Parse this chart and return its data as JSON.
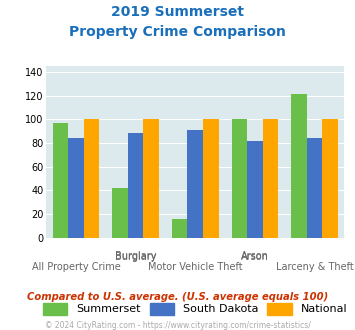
{
  "title_line1": "2019 Summerset",
  "title_line2": "Property Crime Comparison",
  "categories": [
    "All Property Crime",
    "Burglary",
    "Motor Vehicle Theft",
    "Arson",
    "Larceny & Theft"
  ],
  "x_label_top": [
    "",
    "Burglary",
    "",
    "Arson",
    ""
  ],
  "x_label_bottom": [
    "All Property Crime",
    "",
    "Motor Vehicle Theft",
    "",
    "Larceny & Theft"
  ],
  "summerset": [
    97,
    42,
    16,
    100,
    121
  ],
  "south_dakota": [
    84,
    88,
    91,
    82,
    84
  ],
  "national": [
    100,
    100,
    100,
    100,
    100
  ],
  "colors": {
    "summerset": "#6abf4b",
    "south_dakota": "#4472c4",
    "national": "#ffa500"
  },
  "ylim": [
    0,
    145
  ],
  "yticks": [
    0,
    20,
    40,
    60,
    80,
    100,
    120,
    140
  ],
  "title_color": "#1a6fba",
  "note_text": "Compared to U.S. average. (U.S. average equals 100)",
  "footer_text": "© 2024 CityRating.com - https://www.cityrating.com/crime-statistics/",
  "note_color": "#cc3300",
  "footer_color": "#aaaaaa",
  "bg_color": "#dce9ed",
  "fig_bg": "#ffffff",
  "legend_labels": [
    "Summerset",
    "South Dakota",
    "National"
  ]
}
